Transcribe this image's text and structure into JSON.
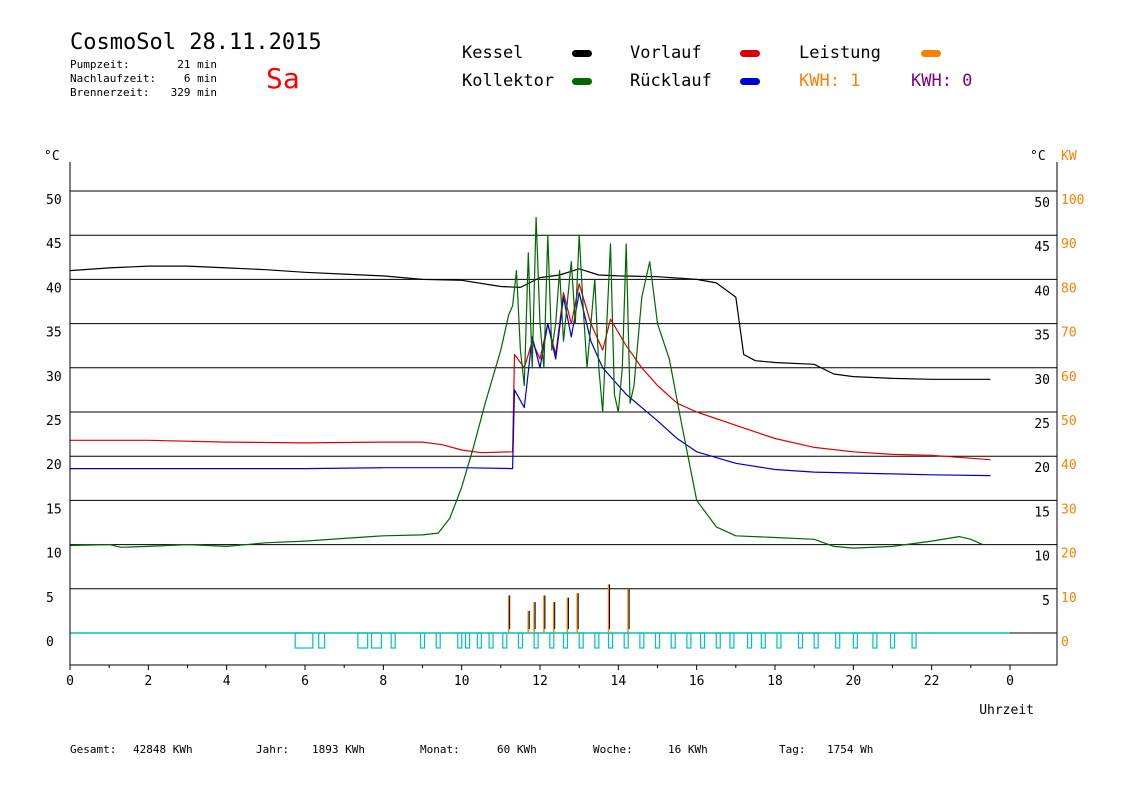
{
  "header": {
    "title": "CosmoSol 28.11.2015",
    "day": "Sa",
    "stats": [
      {
        "label": "Pumpzeit:",
        "value": "21 min"
      },
      {
        "label": "Nachlaufzeit:",
        "value": "6 min"
      },
      {
        "label": "Brennerzeit:",
        "value": "329 min"
      }
    ]
  },
  "legend": {
    "kessel": "Kessel",
    "vorlauf": "Vorlauf",
    "leistung": "Leistung",
    "kollektor": "Kollektor",
    "ruecklauf": "Rücklauf",
    "kwh1": "KWH: 1",
    "kwh2": "KWH: 0"
  },
  "colors": {
    "kessel": "#000000",
    "vorlauf": "#dd0000",
    "ruecklauf": "#0000cc",
    "kollektor": "#006600",
    "leistung": "#ff8000",
    "kwh2": "#800080",
    "pump": "#00c0c0"
  },
  "footer": [
    {
      "label": "Gesamt:",
      "value": "42848 KWh"
    },
    {
      "label": "Jahr:",
      "value": "1893 KWh"
    },
    {
      "label": "Monat:",
      "value": "60 KWh"
    },
    {
      "label": "Woche:",
      "value": "16 KWh"
    },
    {
      "label": "Tag:",
      "value": "1754 Wh"
    }
  ],
  "chart_data": {
    "type": "line",
    "xlabel": "Uhrzeit",
    "ylabel_left": "°C",
    "ylabel_right_temp": "°C",
    "ylabel_right_power": "KW",
    "xlim": [
      0,
      24
    ],
    "ylim": [
      0,
      50
    ],
    "ylim_power": [
      0,
      100
    ],
    "x_ticks": [
      "0",
      "2",
      "4",
      "6",
      "8",
      "10",
      "12",
      "14",
      "16",
      "18",
      "20",
      "22",
      "0"
    ],
    "y_ticks": [
      "0",
      "5",
      "10",
      "15",
      "20",
      "25",
      "30",
      "35",
      "40",
      "45",
      "50"
    ],
    "y_ticks_right": [
      "5",
      "10",
      "15",
      "20",
      "25",
      "30",
      "35",
      "40",
      "45",
      "50"
    ],
    "y_ticks_power": [
      "0",
      "10",
      "20",
      "30",
      "40",
      "50",
      "60",
      "70",
      "80",
      "90",
      "100"
    ],
    "grid": "horizontal",
    "series": [
      {
        "key": "kessel",
        "points": [
          [
            0,
            41.0
          ],
          [
            1,
            41.3
          ],
          [
            2,
            41.5
          ],
          [
            3,
            41.5
          ],
          [
            4,
            41.3
          ],
          [
            5,
            41.1
          ],
          [
            6,
            40.8
          ],
          [
            7,
            40.6
          ],
          [
            8,
            40.4
          ],
          [
            9,
            40.0
          ],
          [
            10,
            39.9
          ],
          [
            11,
            39.2
          ],
          [
            11.5,
            39.1
          ],
          [
            12,
            40.2
          ],
          [
            12.5,
            40.5
          ],
          [
            13,
            41.2
          ],
          [
            13.5,
            40.5
          ],
          [
            14,
            40.4
          ],
          [
            15,
            40.3
          ],
          [
            16,
            40.0
          ],
          [
            16.5,
            39.6
          ],
          [
            17,
            38.0
          ],
          [
            17.2,
            31.5
          ],
          [
            17.5,
            30.8
          ],
          [
            18,
            30.6
          ],
          [
            19,
            30.4
          ],
          [
            19.5,
            29.3
          ],
          [
            20,
            29.0
          ],
          [
            21,
            28.8
          ],
          [
            22,
            28.7
          ],
          [
            23.5,
            28.7
          ]
        ]
      },
      {
        "key": "vorlauf",
        "points": [
          [
            0,
            21.8
          ],
          [
            2,
            21.8
          ],
          [
            4,
            21.6
          ],
          [
            6,
            21.5
          ],
          [
            8,
            21.6
          ],
          [
            9,
            21.6
          ],
          [
            9.5,
            21.3
          ],
          [
            10,
            20.7
          ],
          [
            10.5,
            20.4
          ],
          [
            11.3,
            20.5
          ],
          [
            11.35,
            31.5
          ],
          [
            11.6,
            30
          ],
          [
            11.8,
            33
          ],
          [
            12.0,
            31
          ],
          [
            12.2,
            35
          ],
          [
            12.4,
            31.5
          ],
          [
            12.6,
            38.5
          ],
          [
            12.8,
            35
          ],
          [
            13,
            39.5
          ],
          [
            13.3,
            35
          ],
          [
            13.6,
            32
          ],
          [
            13.8,
            35.5
          ],
          [
            14.2,
            32.5
          ],
          [
            14.6,
            30
          ],
          [
            15,
            28
          ],
          [
            15.5,
            26
          ],
          [
            16,
            25
          ],
          [
            17,
            23.5
          ],
          [
            18,
            22
          ],
          [
            19,
            21
          ],
          [
            20,
            20.5
          ],
          [
            21,
            20.2
          ],
          [
            22,
            20.1
          ],
          [
            23.5,
            19.6
          ]
        ]
      },
      {
        "key": "ruecklauf",
        "points": [
          [
            0,
            18.6
          ],
          [
            2,
            18.6
          ],
          [
            4,
            18.6
          ],
          [
            6,
            18.6
          ],
          [
            8,
            18.7
          ],
          [
            10,
            18.7
          ],
          [
            11.3,
            18.6
          ],
          [
            11.35,
            27.5
          ],
          [
            11.6,
            25.5
          ],
          [
            11.8,
            33.5
          ],
          [
            12.0,
            30
          ],
          [
            12.2,
            35
          ],
          [
            12.4,
            31
          ],
          [
            12.6,
            38
          ],
          [
            12.8,
            33.5
          ],
          [
            13,
            38.5
          ],
          [
            13.3,
            33
          ],
          [
            13.6,
            30
          ],
          [
            13.8,
            29
          ],
          [
            14.2,
            27
          ],
          [
            14.6,
            25.5
          ],
          [
            15,
            24
          ],
          [
            15.5,
            22
          ],
          [
            16,
            20.5
          ],
          [
            17,
            19.2
          ],
          [
            18,
            18.5
          ],
          [
            19,
            18.2
          ],
          [
            20,
            18.1
          ],
          [
            21,
            18.0
          ],
          [
            22,
            17.9
          ],
          [
            23.5,
            17.8
          ]
        ]
      },
      {
        "key": "kollektor",
        "points": [
          [
            0,
            9.9
          ],
          [
            1,
            10.0
          ],
          [
            1.3,
            9.7
          ],
          [
            2,
            9.8
          ],
          [
            3,
            10.0
          ],
          [
            4,
            9.8
          ],
          [
            5,
            10.2
          ],
          [
            6,
            10.4
          ],
          [
            7,
            10.7
          ],
          [
            8,
            11.0
          ],
          [
            9,
            11.1
          ],
          [
            9.4,
            11.3
          ],
          [
            9.7,
            13
          ],
          [
            10,
            16.5
          ],
          [
            10.3,
            21
          ],
          [
            10.6,
            26
          ],
          [
            11,
            32
          ],
          [
            11.2,
            36
          ],
          [
            11.3,
            37
          ],
          [
            11.4,
            41
          ],
          [
            11.5,
            32
          ],
          [
            11.6,
            28
          ],
          [
            11.7,
            43
          ],
          [
            11.8,
            30
          ],
          [
            11.9,
            47
          ],
          [
            12.0,
            35
          ],
          [
            12.1,
            30
          ],
          [
            12.2,
            45
          ],
          [
            12.3,
            32
          ],
          [
            12.4,
            35
          ],
          [
            12.5,
            41
          ],
          [
            12.6,
            33
          ],
          [
            12.8,
            42
          ],
          [
            12.9,
            35
          ],
          [
            13.0,
            45
          ],
          [
            13.1,
            37
          ],
          [
            13.2,
            30
          ],
          [
            13.4,
            40
          ],
          [
            13.5,
            30
          ],
          [
            13.6,
            25
          ],
          [
            13.8,
            44
          ],
          [
            13.9,
            27
          ],
          [
            14.0,
            25
          ],
          [
            14.1,
            30
          ],
          [
            14.2,
            44
          ],
          [
            14.3,
            26
          ],
          [
            14.4,
            28
          ],
          [
            14.6,
            38
          ],
          [
            14.8,
            42
          ],
          [
            15.0,
            35
          ],
          [
            15.3,
            31
          ],
          [
            15.6,
            24
          ],
          [
            16,
            15
          ],
          [
            16.5,
            12
          ],
          [
            17,
            11.0
          ],
          [
            18,
            10.8
          ],
          [
            19,
            10.6
          ],
          [
            19.5,
            9.8
          ],
          [
            20,
            9.6
          ],
          [
            21,
            9.8
          ],
          [
            22,
            10.4
          ],
          [
            22.7,
            10.9
          ],
          [
            23,
            10.6
          ],
          [
            23.3,
            10.0
          ]
        ]
      }
    ],
    "leistung_peaks_kw": [
      [
        11.2,
        8.5
      ],
      [
        11.7,
        5
      ],
      [
        11.85,
        7
      ],
      [
        12.1,
        8.5
      ],
      [
        12.35,
        7
      ],
      [
        12.7,
        8
      ],
      [
        12.95,
        9
      ],
      [
        13.75,
        11
      ],
      [
        14.25,
        10
      ]
    ],
    "pump_intervals": [
      [
        5.75,
        6.2
      ],
      [
        6.35,
        6.5
      ],
      [
        7.35,
        7.6
      ],
      [
        7.7,
        7.95
      ],
      [
        8.2,
        8.3
      ],
      [
        8.95,
        9.05
      ],
      [
        9.35,
        9.45
      ],
      [
        9.9,
        10.0
      ],
      [
        10.1,
        10.2
      ],
      [
        10.4,
        10.5
      ],
      [
        10.7,
        10.8
      ],
      [
        11.05,
        11.15
      ],
      [
        11.45,
        11.55
      ],
      [
        11.85,
        11.95
      ],
      [
        12.25,
        12.35
      ],
      [
        12.6,
        12.7
      ],
      [
        13.0,
        13.1
      ],
      [
        13.4,
        13.5
      ],
      [
        13.75,
        13.85
      ],
      [
        14.15,
        14.25
      ],
      [
        14.55,
        14.65
      ],
      [
        14.95,
        15.05
      ],
      [
        15.35,
        15.45
      ],
      [
        15.75,
        15.85
      ],
      [
        16.1,
        16.2
      ],
      [
        16.5,
        16.6
      ],
      [
        16.85,
        16.95
      ],
      [
        17.3,
        17.4
      ],
      [
        17.65,
        17.75
      ],
      [
        18.05,
        18.15
      ],
      [
        18.6,
        18.7
      ],
      [
        19.0,
        19.1
      ],
      [
        19.55,
        19.65
      ],
      [
        20.0,
        20.1
      ],
      [
        20.5,
        20.6
      ],
      [
        20.95,
        21.05
      ],
      [
        21.5,
        21.6
      ]
    ]
  }
}
